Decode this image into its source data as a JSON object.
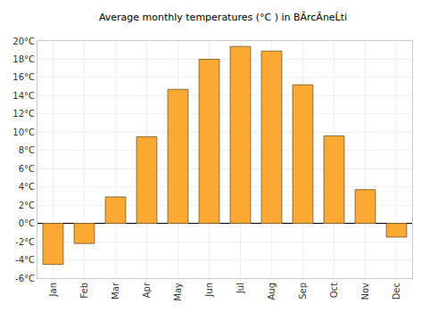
{
  "chart_data": {
    "type": "bar",
    "title": "Average monthly temperatures (°C ) in BĂrcĂneĹti",
    "categories": [
      "Jan",
      "Feb",
      "Mar",
      "Apr",
      "May",
      "Jun",
      "Jul",
      "Aug",
      "Sep",
      "Oct",
      "Nov",
      "Dec"
    ],
    "values": [
      -4.5,
      -2.2,
      2.9,
      9.5,
      14.7,
      18.0,
      19.4,
      18.9,
      15.2,
      9.6,
      3.7,
      -1.5
    ],
    "color": "#fba932",
    "ylim": [
      -6,
      20
    ],
    "yticks": [
      {
        "value": -6,
        "label": "-6°C"
      },
      {
        "value": -4,
        "label": "-4°C"
      },
      {
        "value": -2,
        "label": "-2°C"
      },
      {
        "value": 0,
        "label": "0°C"
      },
      {
        "value": 2,
        "label": "2°C"
      },
      {
        "value": 4,
        "label": "4°C"
      },
      {
        "value": 6,
        "label": "6°C"
      },
      {
        "value": 8,
        "label": "8°C"
      },
      {
        "value": 10,
        "label": "10°C"
      },
      {
        "value": 12,
        "label": "12°C"
      },
      {
        "value": 14,
        "label": "14°C"
      },
      {
        "value": 16,
        "label": "16°C"
      },
      {
        "value": 18,
        "label": "18°C"
      },
      {
        "value": 20,
        "label": "20°C"
      }
    ],
    "grid": true
  }
}
